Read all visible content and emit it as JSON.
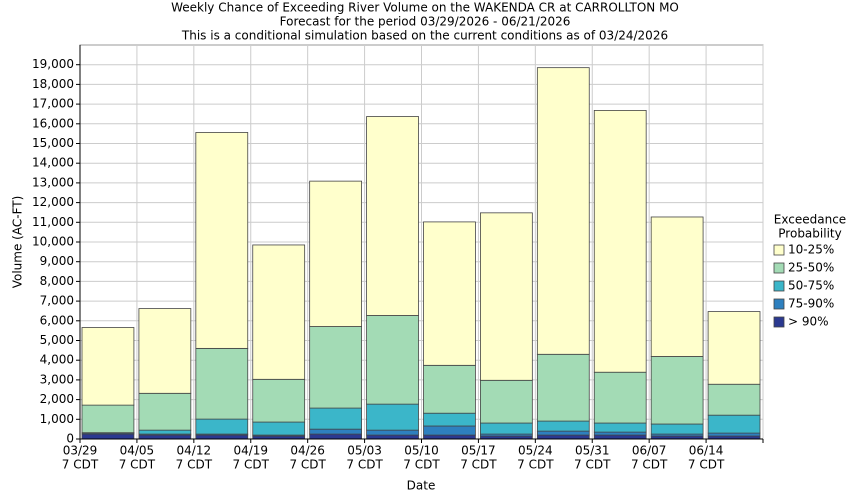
{
  "chart_data": {
    "type": "stacked_bar",
    "title": "Weekly Chance of Exceeding River Volume on the WAKENDA CR at CARROLLTON MO",
    "subtitles": [
      "Forecast for the period 03/29/2026 - 06/21/2026",
      "This is a conditional simulation based on the current conditions as of 03/24/2026"
    ],
    "x_label": "Date",
    "y_label": "Volume (AC-FT)",
    "categories": [
      "03/29",
      "04/05",
      "04/12",
      "04/19",
      "04/26",
      "05/03",
      "05/10",
      "05/17",
      "05/24",
      "05/31",
      "06/07",
      "06/14"
    ],
    "category_sublabels": [
      "7 CDT",
      "7 CDT",
      "7 CDT",
      "7 CDT",
      "7 CDT",
      "7 CDT",
      "7 CDT",
      "7 CDT",
      "7 CDT",
      "7 CDT",
      "7 CDT",
      "7 CDT"
    ],
    "legend_title": [
      "Exceedance",
      "Probability"
    ],
    "series": [
      {
        "name": "> 90%",
        "color": "#2b3990",
        "values": [
          250,
          200,
          200,
          150,
          250,
          200,
          200,
          150,
          200,
          200,
          150,
          150
        ]
      },
      {
        "name": "75-90%",
        "color": "#2e80bf",
        "values": [
          50,
          50,
          50,
          50,
          250,
          250,
          460,
          100,
          200,
          150,
          100,
          150
        ]
      },
      {
        "name": "50-75%",
        "color": "#3bb6c9",
        "values": [
          20,
          200,
          760,
          660,
          1070,
          1320,
          650,
          560,
          510,
          460,
          510,
          910
        ]
      },
      {
        "name": "25-50%",
        "color": "#a3dbb5",
        "values": [
          1400,
          1870,
          3590,
          2170,
          4140,
          4500,
          2430,
          2170,
          3390,
          2580,
          3430,
          1570
        ]
      },
      {
        "name": "10-25%",
        "color": "#ffffcc",
        "values": [
          3940,
          4300,
          10960,
          6820,
          7380,
          10100,
          7280,
          8500,
          14550,
          13290,
          7080,
          3690
        ]
      }
    ],
    "ylim": [
      0,
      20000
    ],
    "yticks": [
      0,
      {
        "value": 1000,
        "label": "1,000"
      },
      {
        "value": 2000,
        "label": "2,000"
      },
      {
        "value": 3000,
        "label": "3,000"
      },
      {
        "value": 4000,
        "label": "4,000"
      },
      {
        "value": 5000,
        "label": "5,000"
      },
      {
        "value": 6000,
        "label": "6,000"
      },
      {
        "value": 7000,
        "label": "7,000"
      },
      {
        "value": 8000,
        "label": "8,000"
      },
      {
        "value": 9000,
        "label": "9,000"
      },
      {
        "value": 10000,
        "label": "10,000"
      },
      {
        "value": 11000,
        "label": "11,000"
      },
      {
        "value": 12000,
        "label": "12,000"
      },
      {
        "value": 13000,
        "label": "13,000"
      },
      {
        "value": 14000,
        "label": "14,000"
      },
      {
        "value": 15000,
        "label": "15,000"
      },
      {
        "value": 16000,
        "label": "16,000"
      },
      {
        "value": 17000,
        "label": "17,000"
      },
      {
        "value": 18000,
        "label": "18,000"
      },
      {
        "value": 19000,
        "label": "19,000"
      }
    ],
    "grid": true
  }
}
